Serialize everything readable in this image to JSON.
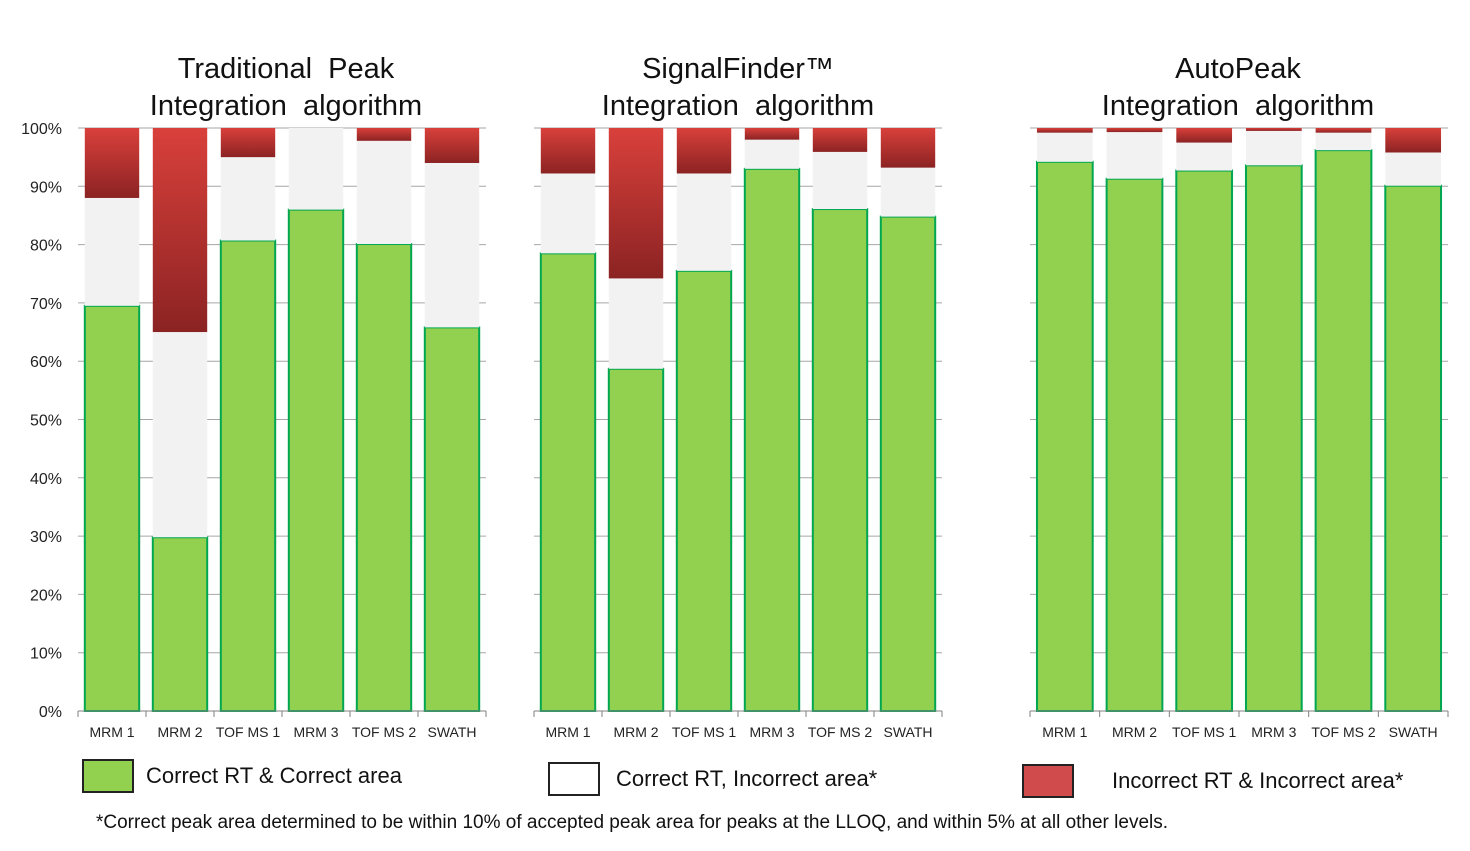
{
  "chart_data": [
    {
      "type": "bar",
      "stacked": true,
      "title": [
        "Traditional  Peak",
        "Integration  algorithm"
      ],
      "categories": [
        "MRM 1",
        "MRM 2",
        "TOF MS 1",
        "MRM 3",
        "TOF MS 2",
        "SWATH"
      ],
      "ylim": [
        0,
        100
      ],
      "yticks": [
        "0%",
        "10%",
        "20%",
        "30%",
        "40%",
        "50%",
        "60%",
        "70%",
        "80%",
        "90%",
        "100%"
      ],
      "series": [
        {
          "name": "Correct RT & Correct area",
          "values": [
            69.5,
            29.8,
            80.7,
            86.0,
            80.1,
            65.8
          ]
        },
        {
          "name": "Correct RT,  Incorrect area*",
          "values": [
            18.5,
            35.2,
            14.3,
            14.0,
            17.7,
            28.2
          ]
        },
        {
          "name": "Incorrect RT & Incorrect area*",
          "values": [
            12.0,
            35.0,
            5.0,
            0.0,
            2.2,
            6.0
          ]
        }
      ]
    },
    {
      "type": "bar",
      "stacked": true,
      "title": [
        "SignalFinder™",
        "Integration  algorithm"
      ],
      "categories": [
        "MRM 1",
        "MRM 2",
        "TOF MS 1",
        "MRM 3",
        "TOF MS 2",
        "SWATH"
      ],
      "ylim": [
        0,
        100
      ],
      "series": [
        {
          "name": "Correct RT & Correct area",
          "values": [
            78.5,
            58.7,
            75.5,
            93.0,
            86.1,
            84.8
          ]
        },
        {
          "name": "Correct RT,  Incorrect area*",
          "values": [
            13.7,
            15.5,
            16.7,
            5.0,
            9.8,
            8.4
          ]
        },
        {
          "name": "Incorrect RT & Incorrect area*",
          "values": [
            7.8,
            25.8,
            7.8,
            2.0,
            4.1,
            6.8
          ]
        }
      ]
    },
    {
      "type": "bar",
      "stacked": true,
      "title": [
        "AutoPeak",
        "Integration  algorithm"
      ],
      "categories": [
        "MRM 1",
        "MRM 2",
        "TOF MS 1",
        "MRM 3",
        "TOF MS 2",
        "SWATH"
      ],
      "ylim": [
        0,
        100
      ],
      "series": [
        {
          "name": "Correct RT & Correct area",
          "values": [
            94.2,
            91.3,
            92.7,
            93.6,
            96.2,
            90.1
          ]
        },
        {
          "name": "Correct RT,  Incorrect area*",
          "values": [
            5.0,
            8.0,
            4.8,
            5.9,
            3.0,
            5.7
          ]
        },
        {
          "name": "Incorrect RT & Incorrect area*",
          "values": [
            0.8,
            0.7,
            2.5,
            0.5,
            0.8,
            4.2
          ]
        }
      ]
    }
  ],
  "legend": [
    {
      "label": "Correct RT & Correct area",
      "color": "#92d050",
      "border": "#222222"
    },
    {
      "label": "Correct RT,  Incorrect area*",
      "color": "#ffffff",
      "border": "#222222"
    },
    {
      "label": "Incorrect RT & Incorrect area*",
      "color": "#d04b4b",
      "border": "#222222"
    }
  ],
  "footnote": "*Correct peak area determined to be within 10% of accepted peak area for peaks at the LLOQ, and within 5% at all other levels.",
  "colors": {
    "green": "#92d050",
    "green_border": "#00a651",
    "light": "#f2f2f2",
    "red_top": "#d9403b",
    "red_bottom": "#8b2323",
    "grid": "#a6a6a6",
    "axis": "#808080"
  }
}
